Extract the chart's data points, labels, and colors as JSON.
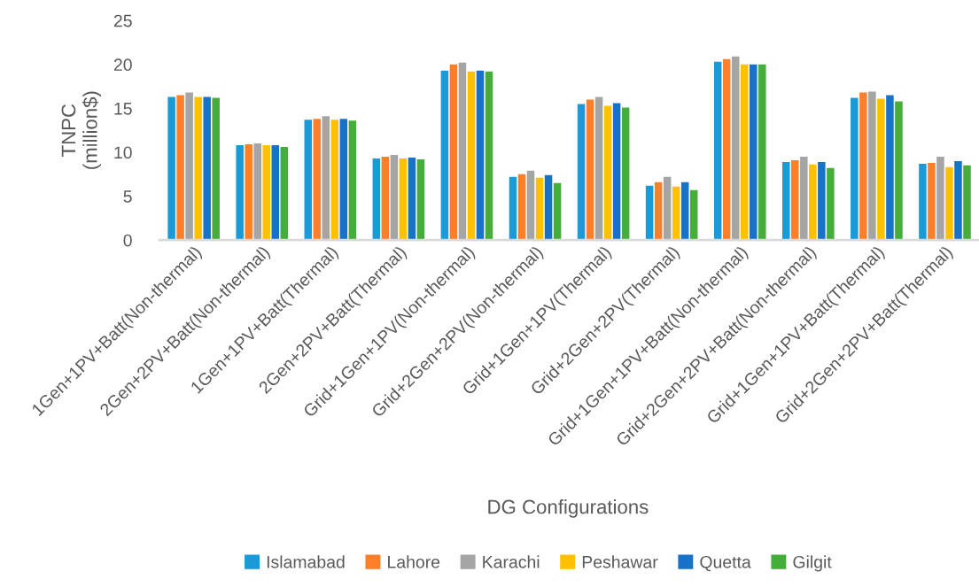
{
  "chart_data": {
    "type": "bar",
    "xlabel": "DG Configurations",
    "ylabel": "TNPC\n(million$)",
    "categories": [
      "1Gen+1PV+Batt(Non-thermal)",
      "2Gen+2PV+Batt(Non-thermal)",
      "1Gen+1PV+Batt(Thermal)",
      "2Gen+2PV+Batt(Thermal)",
      "Grid+1Gen+1PV(Non-thermal)",
      "Grid+2Gen+2PV(Non-thermal)",
      "Grid+1Gen+1PV(Thermal)",
      "Grid+2Gen+2PV(Thermal)",
      "Grid+1Gen+1PV+Batt(Non-thermal)",
      "Grid+2Gen+2PV+Batt(Non-thermal)",
      "Grid+1Gen+1PV+Batt(Thermal)",
      "Grid+2Gen+2PV+Batt(Thermal)"
    ],
    "series": [
      {
        "name": "Islamabad",
        "color": "#1a9ad7",
        "values": [
          16.3,
          10.8,
          13.7,
          9.3,
          19.3,
          7.2,
          15.5,
          6.2,
          20.3,
          8.9,
          16.2,
          8.7
        ]
      },
      {
        "name": "Lahore",
        "color": "#fe7f2a",
        "values": [
          16.5,
          10.9,
          13.8,
          9.5,
          20.0,
          7.5,
          16.0,
          6.6,
          20.6,
          9.1,
          16.8,
          8.8
        ]
      },
      {
        "name": "Karachi",
        "color": "#a5a5a5",
        "values": [
          16.8,
          11.0,
          14.1,
          9.7,
          20.2,
          7.9,
          16.3,
          7.2,
          20.9,
          9.5,
          16.9,
          9.5
        ]
      },
      {
        "name": "Peshawar",
        "color": "#ffc000",
        "values": [
          16.3,
          10.8,
          13.7,
          9.3,
          19.2,
          7.1,
          15.3,
          6.1,
          20.0,
          8.6,
          16.1,
          8.3
        ]
      },
      {
        "name": "Quetta",
        "color": "#1872c7",
        "values": [
          16.3,
          10.8,
          13.8,
          9.4,
          19.3,
          7.4,
          15.6,
          6.6,
          20.0,
          8.9,
          16.5,
          9.0
        ]
      },
      {
        "name": "Gilgit",
        "color": "#45ad3a",
        "values": [
          16.2,
          10.6,
          13.6,
          9.2,
          19.2,
          6.5,
          15.1,
          5.7,
          20.0,
          8.2,
          15.8,
          8.5
        ]
      }
    ],
    "ylim": [
      0,
      25
    ],
    "yticks": [
      0,
      5,
      10,
      15,
      20,
      25
    ],
    "grid": false,
    "legend": "bottom"
  }
}
